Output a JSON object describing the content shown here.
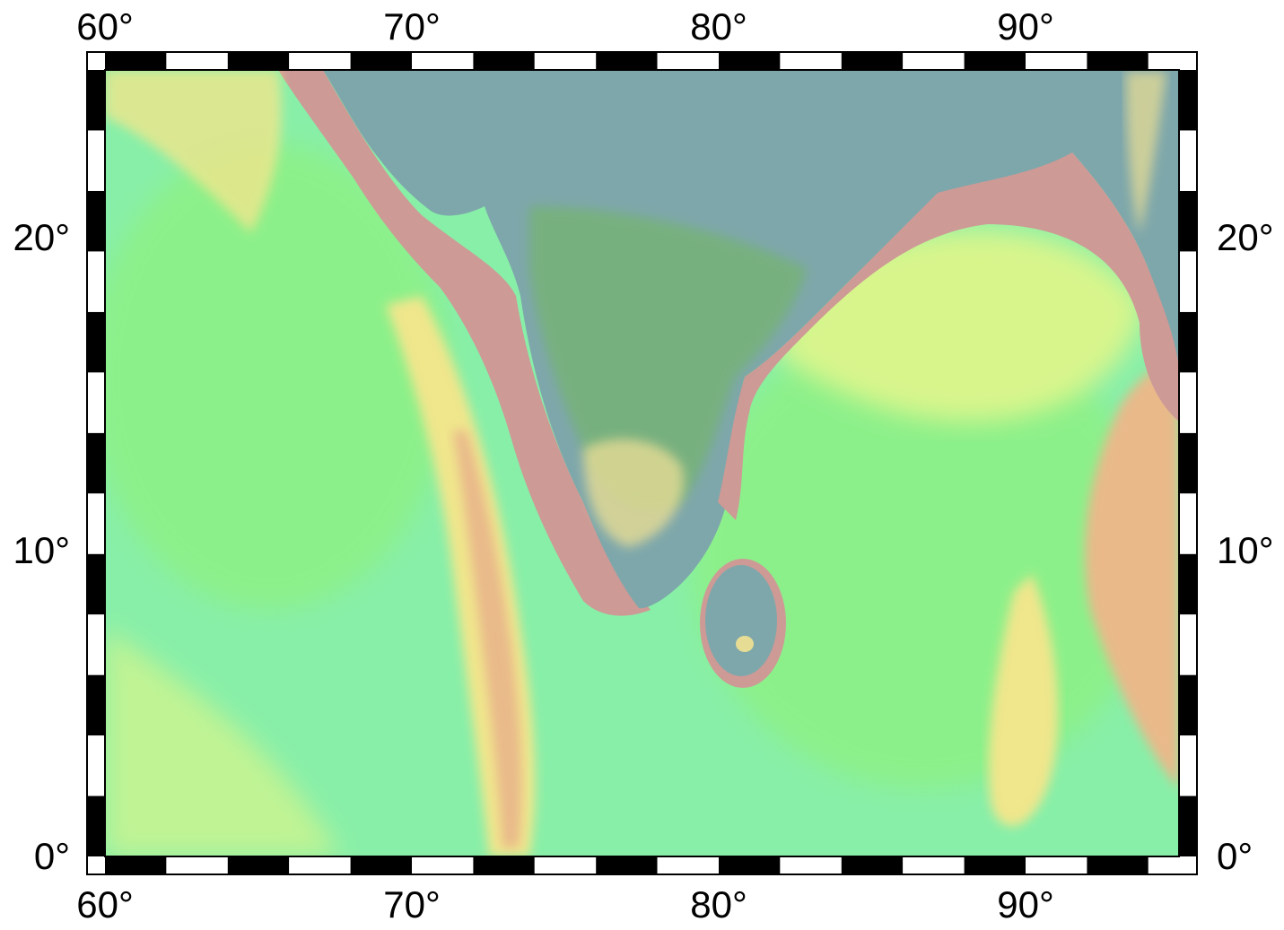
{
  "map": {
    "projection": "cylindrical",
    "region": {
      "lon_min": 60,
      "lon_max": 95,
      "lat_min": 0,
      "lat_max": 26
    },
    "frame_style": "checkerboard",
    "frame_interval_deg": 2,
    "colors": {
      "frame_dark": "#000000",
      "frame_light": "#ffffff",
      "deep_ocean": "#88efa8",
      "abyssal_plain": "#8cf08a",
      "mid_ocean": "#d8f58c",
      "shelf": "#cd9a96",
      "slope": "#e9b98a",
      "ridge": "#f0e68c",
      "lowland": "#7ea7ab",
      "upland": "#76b374",
      "highland": "#e6dc94"
    }
  },
  "axes": {
    "top_labels": [
      "60°",
      "70°",
      "80°",
      "90°"
    ],
    "bottom_labels": [
      "60°",
      "70°",
      "80°",
      "90°"
    ],
    "left_labels": [
      "20°",
      "10°",
      "0°"
    ],
    "right_labels": [
      "20°",
      "10°",
      "0°"
    ]
  }
}
